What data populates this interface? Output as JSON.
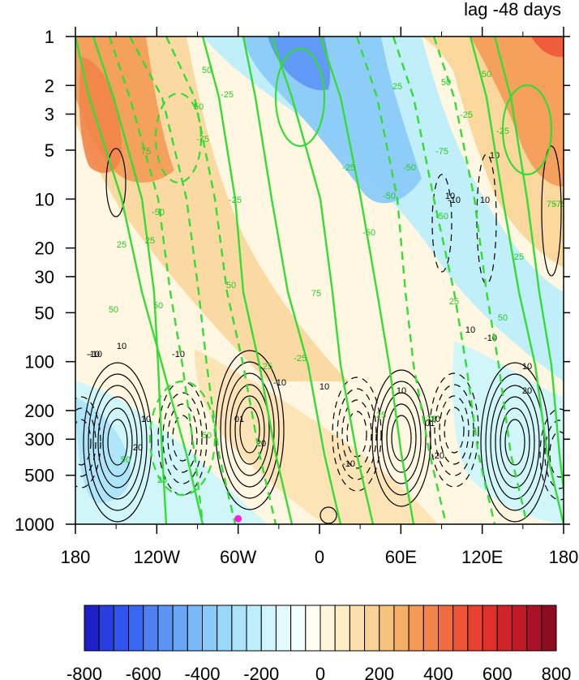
{
  "chart_data": {
    "type": "heatmap",
    "title": "lag -48 days",
    "xlabel": "",
    "ylabel": "",
    "x_tick_labels": [
      "180",
      "120W",
      "60W",
      "0",
      "60E",
      "120E",
      "180"
    ],
    "x_ticks_deg": [
      -180,
      -120,
      -60,
      0,
      60,
      120,
      180
    ],
    "y_tick_labels": [
      "1",
      "2",
      "3",
      "5",
      "10",
      "20",
      "30",
      "50",
      "100",
      "200",
      "300",
      "500",
      "1000"
    ],
    "y_ticks_hpa": [
      1,
      2,
      3,
      5,
      10,
      20,
      30,
      50,
      100,
      200,
      300,
      500,
      1000
    ],
    "y_scale": "log-reversed",
    "xlim": [
      -180,
      180
    ],
    "ylim_hpa": [
      1000,
      1
    ],
    "colorbar": {
      "levels": [
        -800,
        -750,
        -700,
        -650,
        -600,
        -550,
        -500,
        -450,
        -400,
        -350,
        -300,
        -250,
        -200,
        -150,
        -100,
        -50,
        0,
        50,
        100,
        150,
        200,
        250,
        300,
        350,
        400,
        450,
        500,
        550,
        600,
        650,
        700,
        750,
        800
      ],
      "tick_labels": [
        "-800",
        "-600",
        "-400",
        "-200",
        "0",
        "200",
        "400",
        "600",
        "800"
      ],
      "tick_values": [
        -800,
        -600,
        -400,
        -200,
        0,
        200,
        400,
        600,
        800
      ],
      "colors": [
        "#1f1fc8",
        "#2a3ee0",
        "#2f55ee",
        "#3868f2",
        "#4d7ff3",
        "#5c94f5",
        "#6aa6f6",
        "#7ab9f7",
        "#8acaf8",
        "#9ad8f8",
        "#abe3f9",
        "#bdeefa",
        "#cff5fb",
        "#e3fafd",
        "#f2fdfe",
        "#fffef0",
        "#fff6dd",
        "#fdedc6",
        "#fbe0ae",
        "#f9d396",
        "#f7c27e",
        "#f5b067",
        "#f49a56",
        "#f2844a",
        "#f06c40",
        "#ee5538",
        "#e84132",
        "#df302d",
        "#d1232a",
        "#c01a27",
        "#a81224",
        "#8e0c20"
      ]
    },
    "shaded_anomalies": [
      {
        "lon": -160,
        "p": 3,
        "value": 460
      },
      {
        "lon": -150,
        "p": 8,
        "value": 520
      },
      {
        "lon": -130,
        "p": 15,
        "value": 330
      },
      {
        "lon": -100,
        "p": 40,
        "value": 180
      },
      {
        "lon": -60,
        "p": 150,
        "value": 100
      },
      {
        "lon": -40,
        "p": 250,
        "value": 120
      },
      {
        "lon": -10,
        "p": 1.5,
        "value": -400
      },
      {
        "lon": 0,
        "p": 5,
        "value": -320
      },
      {
        "lon": 40,
        "p": 15,
        "value": -250
      },
      {
        "lon": 110,
        "p": 150,
        "value": -150
      },
      {
        "lon": 160,
        "p": 250,
        "value": -120
      },
      {
        "lon": -160,
        "p": 300,
        "value": -120
      },
      {
        "lon": 160,
        "p": 3,
        "value": 420
      },
      {
        "lon": 170,
        "p": 1.2,
        "value": 650
      },
      {
        "lon": 130,
        "p": 30,
        "value": 150
      },
      {
        "lon": 0,
        "p": 800,
        "value": 60
      }
    ],
    "green_contour_labels": [
      "50",
      "75",
      "-75",
      "-50",
      "-25",
      "25",
      "25",
      "50",
      "75",
      "50",
      "25",
      "50",
      "-25",
      "-50",
      "-75",
      "-25",
      "-50",
      "-25",
      "-50",
      "-75",
      "50",
      "25",
      "50",
      "25",
      "-25",
      "25",
      "50",
      "-50",
      "-25",
      "25",
      "-75",
      "50",
      "50",
      "50",
      "25",
      "75"
    ],
    "black_contour_labels": [
      "-10",
      "10",
      "10",
      "20",
      "-10",
      "01",
      "20",
      "-10",
      "10",
      "10",
      "-10",
      "10",
      "-10",
      "-10",
      "-10",
      "01",
      "-20",
      "-10",
      "10",
      "10",
      "20",
      "10",
      "10"
    ],
    "marker": {
      "lon": -60,
      "p": 925,
      "color": "#ff22dd"
    }
  }
}
